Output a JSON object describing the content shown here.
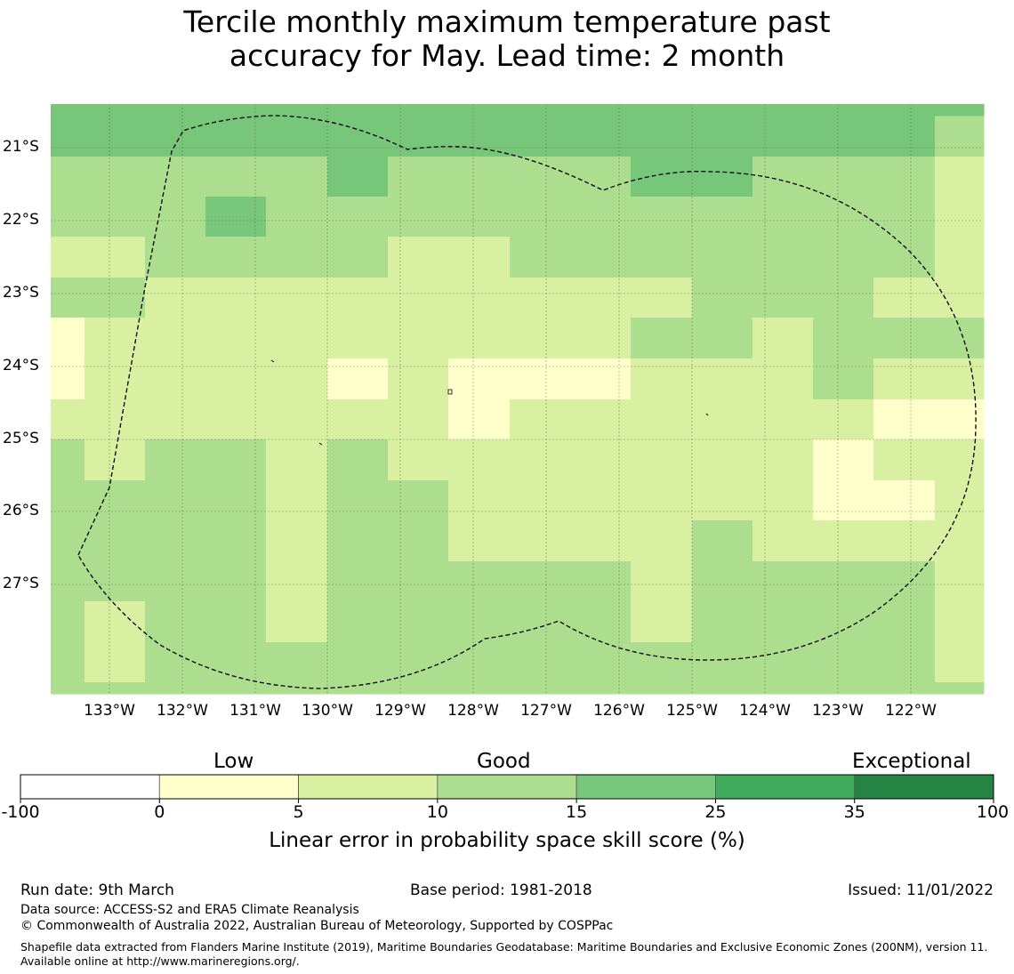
{
  "title": {
    "line1": "Tercile monthly maximum temperature past",
    "line2": "accuracy for May. Lead time: 2 month"
  },
  "map": {
    "lon_labels": [
      "133°W",
      "132°W",
      "131°W",
      "130°W",
      "129°W",
      "128°W",
      "127°W",
      "126°W",
      "125°W",
      "124°W",
      "123°W",
      "122°W"
    ],
    "lat_labels": [
      "21°S",
      "22°S",
      "23°S",
      "24°S",
      "25°S",
      "26°S",
      "27°S"
    ],
    "grid": [
      [
        3,
        3,
        3,
        3,
        3,
        3,
        3,
        3,
        3,
        3,
        3,
        3,
        3,
        3,
        3,
        2
      ],
      [
        2,
        2,
        2,
        2,
        2,
        3,
        2,
        2,
        2,
        2,
        3,
        3,
        2,
        2,
        2,
        1
      ],
      [
        2,
        2,
        2,
        3,
        2,
        2,
        2,
        2,
        2,
        2,
        2,
        2,
        2,
        2,
        2,
        1
      ],
      [
        1,
        1,
        2,
        2,
        2,
        2,
        1,
        1,
        2,
        2,
        2,
        2,
        2,
        2,
        2,
        1
      ],
      [
        2,
        2,
        1,
        1,
        1,
        1,
        1,
        1,
        1,
        1,
        1,
        2,
        2,
        2,
        1,
        1
      ],
      [
        0,
        1,
        1,
        1,
        1,
        1,
        1,
        1,
        1,
        1,
        2,
        2,
        1,
        2,
        2,
        2
      ],
      [
        0,
        1,
        1,
        1,
        1,
        0,
        1,
        0,
        0,
        0,
        1,
        1,
        1,
        2,
        1,
        1
      ],
      [
        1,
        1,
        1,
        1,
        1,
        1,
        1,
        0,
        1,
        1,
        1,
        1,
        1,
        1,
        0,
        0
      ],
      [
        2,
        1,
        2,
        2,
        1,
        2,
        1,
        1,
        1,
        1,
        1,
        1,
        1,
        0,
        1,
        1
      ],
      [
        2,
        2,
        2,
        2,
        1,
        2,
        2,
        1,
        1,
        1,
        1,
        1,
        1,
        0,
        0,
        1
      ],
      [
        2,
        2,
        2,
        2,
        1,
        2,
        2,
        1,
        1,
        1,
        1,
        2,
        1,
        1,
        1,
        1
      ],
      [
        2,
        2,
        2,
        2,
        1,
        2,
        2,
        2,
        2,
        2,
        1,
        2,
        2,
        2,
        2,
        1
      ],
      [
        2,
        1,
        2,
        2,
        1,
        2,
        2,
        2,
        2,
        2,
        1,
        2,
        2,
        2,
        2,
        1
      ],
      [
        2,
        1,
        2,
        2,
        2,
        2,
        2,
        2,
        2,
        2,
        2,
        2,
        2,
        2,
        2,
        1
      ],
      [
        2,
        2,
        2,
        2,
        2,
        2,
        2,
        2,
        2,
        2,
        2,
        2,
        2,
        2,
        2,
        2
      ]
    ]
  },
  "legend": {
    "categories": [
      "Low",
      "Good",
      "Exceptional"
    ],
    "ticks": [
      "-100",
      "0",
      "5",
      "10",
      "15",
      "25",
      "35",
      "100"
    ],
    "colors": [
      "#ffffff",
      "#ffffcc",
      "#d9f0a3",
      "#addd8e",
      "#78c679",
      "#41ab5d",
      "#238443"
    ],
    "title": "Linear error in probability space skill score (%)"
  },
  "footer": {
    "run_date": "Run date: 9th March",
    "base_period": "Base period: 1981-2018",
    "issued": "Issued: 11/01/2022",
    "data_source": "Data source: ACCESS-S2 and ERA5 Climate Reanalysis",
    "copyright": "© Commonwealth of Australia 2022, Australian Bureau of Meteorology, Supported by COSPPac",
    "shapefile": "Shapefile data extracted from Flanders Marine Institute (2019), Maritime Boundaries Geodatabase: Maritime Boundaries and Exclusive Economic Zones (200NM), version 11. Available online at http://www.marineregions.org/."
  }
}
